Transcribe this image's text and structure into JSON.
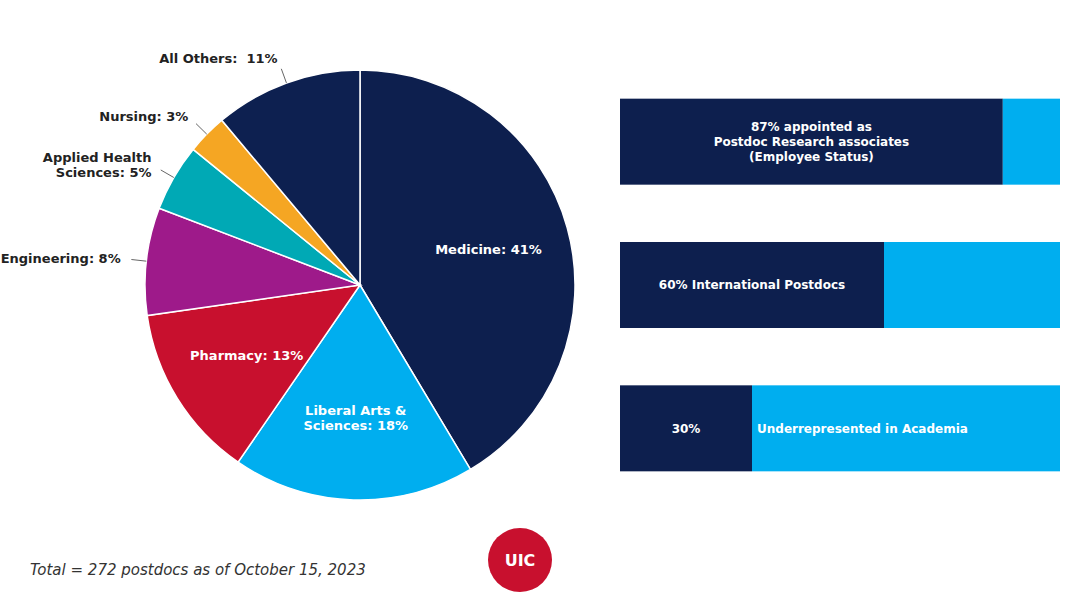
{
  "chart_data": [
    {
      "type": "pie",
      "values": [
        41,
        18,
        13,
        8,
        5,
        3,
        11
      ],
      "value_labels": [
        "Medicine: 41%",
        "Liberal Arts &\nSciences: 18%",
        "Pharmacy: 13%",
        "Engineering: 8%",
        "Applied Health\nSciences: 5%",
        "Nursing: 3%",
        "All Others:  11%"
      ],
      "colors": [
        "#0D1F4E",
        "#00AEEF",
        "#C8102E",
        "#9E1A8A",
        "#00A9B5",
        "#F5A623",
        "#0D2050"
      ],
      "data_labels": true,
      "annotations": [
        {
          "text": "Total = 272 postdocs as of October 15, 2023"
        },
        {
          "text": "UIC",
          "color": "#C8102E"
        }
      ]
    },
    {
      "type": "bar",
      "orientation": "horizontal",
      "stacked": true,
      "categories": [
        null,
        null,
        null
      ],
      "xlim": [
        0,
        100
      ],
      "tick_labels": false,
      "grid": false,
      "data_labels": true,
      "series": [
        {
          "color": "#0D1F4E",
          "values": [
            87,
            60,
            30
          ],
          "value_labels": [
            "87% appointed as\nPostdoc Research associates\n(Employee Status)",
            "60% International Postdocs",
            "30% Underrepresented in Academia"
          ]
        },
        {
          "color": "#00AEEF",
          "values": [
            13,
            40,
            70
          ]
        }
      ]
    }
  ]
}
